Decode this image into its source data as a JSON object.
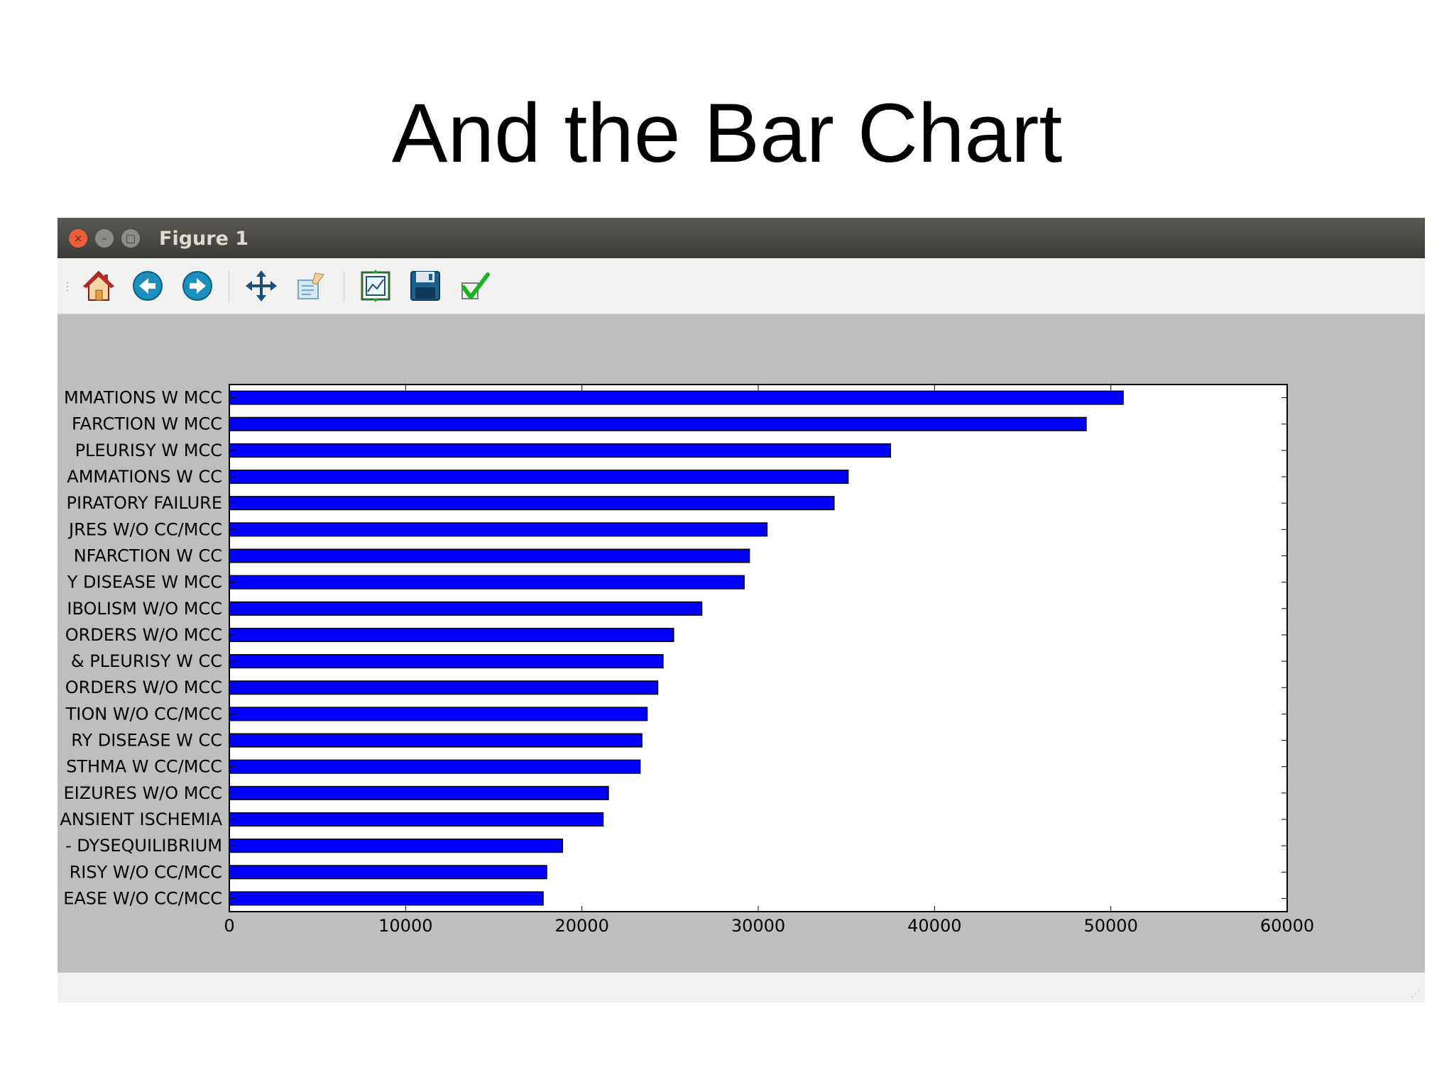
{
  "slide": {
    "title": "And the Bar Chart"
  },
  "window": {
    "title": "Figure 1",
    "controls": {
      "close": "×",
      "minimize": "–",
      "maximize": "□"
    }
  },
  "toolbar": {
    "tools": [
      {
        "icon": "home-icon"
      },
      {
        "icon": "back-arrow-icon"
      },
      {
        "icon": "forward-arrow-icon"
      },
      {
        "icon": "pan-icon"
      },
      {
        "icon": "zoom-icon"
      },
      {
        "icon": "subplots-icon"
      },
      {
        "icon": "save-icon"
      },
      {
        "icon": "edit-check-icon"
      }
    ]
  },
  "colors": {
    "bar": "#0000ff",
    "canvas_bg": "#bfbebf",
    "titlebar": "#3c3b37"
  },
  "chart_data": {
    "type": "bar",
    "orientation": "horizontal",
    "title": "",
    "xlabel": "",
    "ylabel": "",
    "xlim": [
      0,
      60000
    ],
    "xticks": [
      0,
      10000,
      20000,
      30000,
      40000,
      50000,
      60000
    ],
    "xtick_labels": [
      "0",
      "10000",
      "20000",
      "30000",
      "40000",
      "50000",
      "60000"
    ],
    "grid": false,
    "categories": [
      "MMATIONS W MCC",
      "FARCTION W MCC",
      "PLEURISY W MCC",
      "AMMATIONS W CC",
      "PIRATORY FAILURE",
      "JRES W/O CC/MCC",
      "NFARCTION W CC",
      "Y DISEASE W MCC",
      "IBOLISM W/O MCC",
      "ORDERS W/O MCC",
      "& PLEURISY W CC",
      "ORDERS W/O MCC",
      "TION W/O CC/MCC",
      "RY DISEASE W CC",
      "STHMA W CC/MCC",
      "EIZURES W/O MCC",
      "ANSIENT ISCHEMIA",
      "- DYSEQUILIBRIUM",
      "RISY W/O CC/MCC",
      "EASE W/O CC/MCC"
    ],
    "values": [
      50700,
      48600,
      37500,
      35100,
      34300,
      30500,
      29500,
      29200,
      26800,
      25200,
      24600,
      24300,
      23700,
      23400,
      23300,
      21500,
      21200,
      18900,
      18000,
      17800
    ]
  }
}
